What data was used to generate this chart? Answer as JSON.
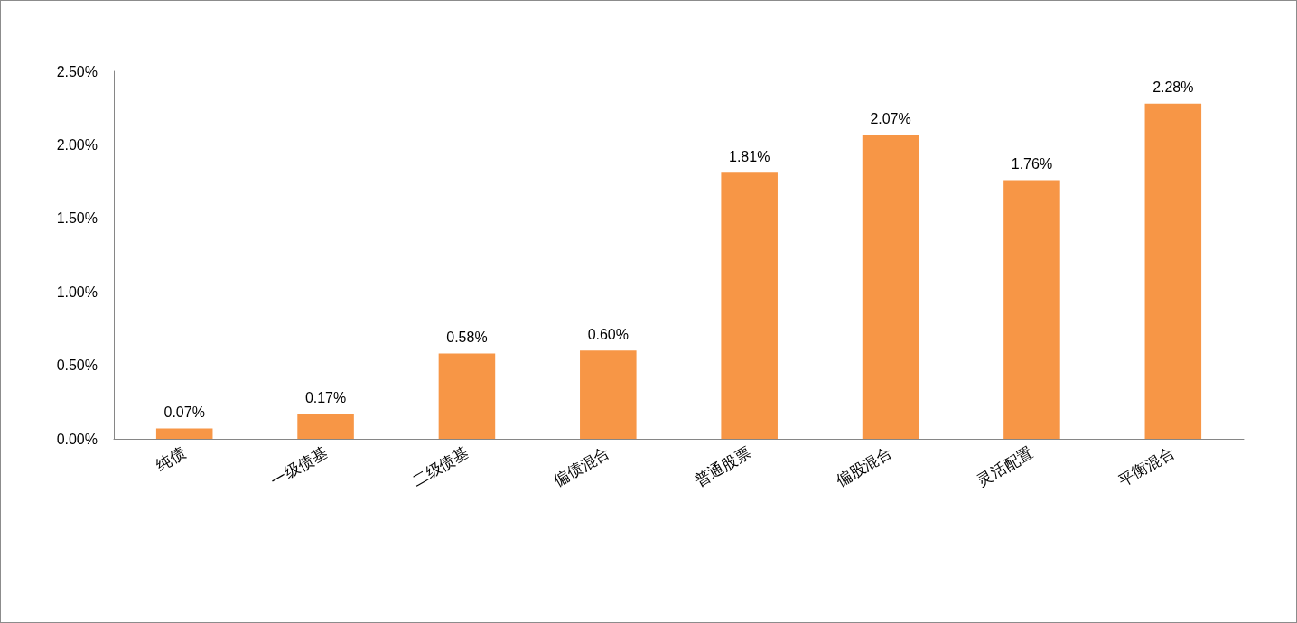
{
  "chart_data": {
    "type": "bar",
    "categories": [
      "纯债",
      "一级债基",
      "二级债基",
      "偏债混合",
      "普通股票",
      "偏股混合",
      "灵活配置",
      "平衡混合"
    ],
    "values": [
      0.07,
      0.17,
      0.58,
      0.6,
      1.81,
      2.07,
      1.76,
      2.28
    ],
    "value_labels": [
      "0.07%",
      "0.17%",
      "0.58%",
      "0.60%",
      "1.81%",
      "2.07%",
      "1.76%",
      "2.28%"
    ],
    "color": "#f79646",
    "ylim": [
      0,
      2.5
    ],
    "yticks": [
      {
        "value": 0,
        "label": "0.00%"
      },
      {
        "value": 0.5,
        "label": "0.50%"
      },
      {
        "value": 1,
        "label": "1.00%"
      },
      {
        "value": 1.5,
        "label": "1.50%"
      },
      {
        "value": 2,
        "label": "2.00%"
      },
      {
        "value": 2.5,
        "label": "2.50%"
      }
    ],
    "grid": false
  }
}
